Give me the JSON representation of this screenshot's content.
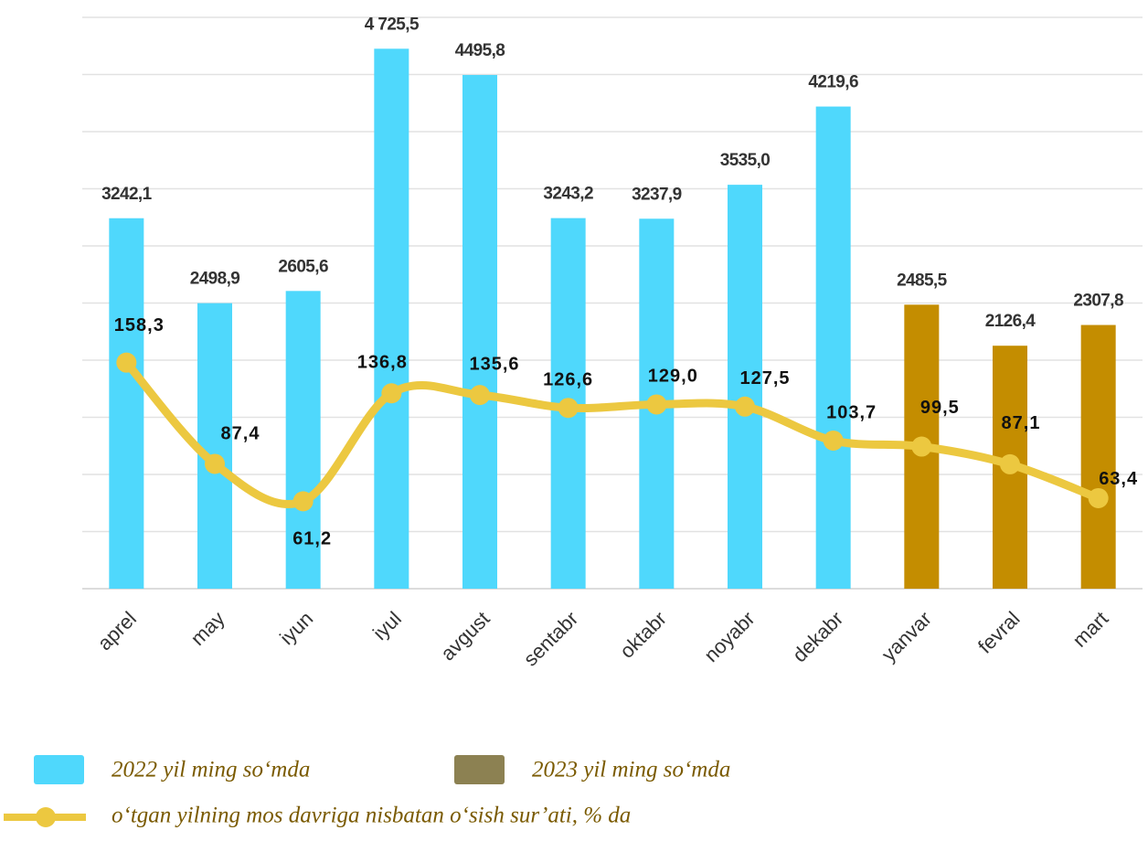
{
  "chart_data": {
    "type": "bar",
    "categories": [
      "aprel",
      "may",
      "iyun",
      "iyul",
      "avgust",
      "sentabr",
      "oktabr",
      "noyabr",
      "dekabr",
      "yanvar",
      "fevral",
      "mart"
    ],
    "ylim": [
      0,
      5000
    ],
    "yticks": [
      0,
      500,
      1000,
      1500,
      2000,
      2500,
      3000,
      3500,
      4000,
      4500,
      5000
    ],
    "y2lim": [
      0,
      400
    ],
    "grid": true,
    "series": [
      {
        "name": "2022 yil ming so‘mda",
        "type": "bar",
        "color": "#4fd8fc",
        "legend_color": "#4fd8fc",
        "values": [
          3242.1,
          2498.9,
          2605.6,
          4725.5,
          4495.8,
          3243.2,
          3237.9,
          3535.0,
          4219.6,
          null,
          null,
          null
        ],
        "value_labels": [
          "3242,1",
          "2498,9",
          "2605,6",
          "4 725,5",
          "4495,8",
          "3243,2",
          "3237,9",
          "3535,0",
          "4219,6",
          null,
          null,
          null
        ]
      },
      {
        "name": "2023 yil ming so‘mda",
        "type": "bar",
        "color": "#c48d00",
        "legend_color": "#8c8152",
        "values": [
          null,
          null,
          null,
          null,
          null,
          null,
          null,
          null,
          null,
          2485.5,
          2126.4,
          2307.8
        ],
        "value_labels": [
          null,
          null,
          null,
          null,
          null,
          null,
          null,
          null,
          null,
          "2485,5",
          "2126,4",
          "2307,8"
        ]
      },
      {
        "name": "o‘tgan yilning mos davriga nisbatan o‘sish sur’ati, % da",
        "type": "line",
        "axis": "y2",
        "color": "#ecc840",
        "values": [
          158.3,
          87.4,
          61.2,
          136.8,
          135.6,
          126.6,
          129.0,
          127.5,
          103.7,
          99.5,
          87.1,
          63.4
        ],
        "value_labels": [
          "158,3",
          "87,4",
          "61,2",
          "136,8",
          "135,6",
          "126,6",
          "129,0",
          "127,5",
          "103,7",
          "99,5",
          "87,1",
          "63,4"
        ]
      }
    ]
  }
}
